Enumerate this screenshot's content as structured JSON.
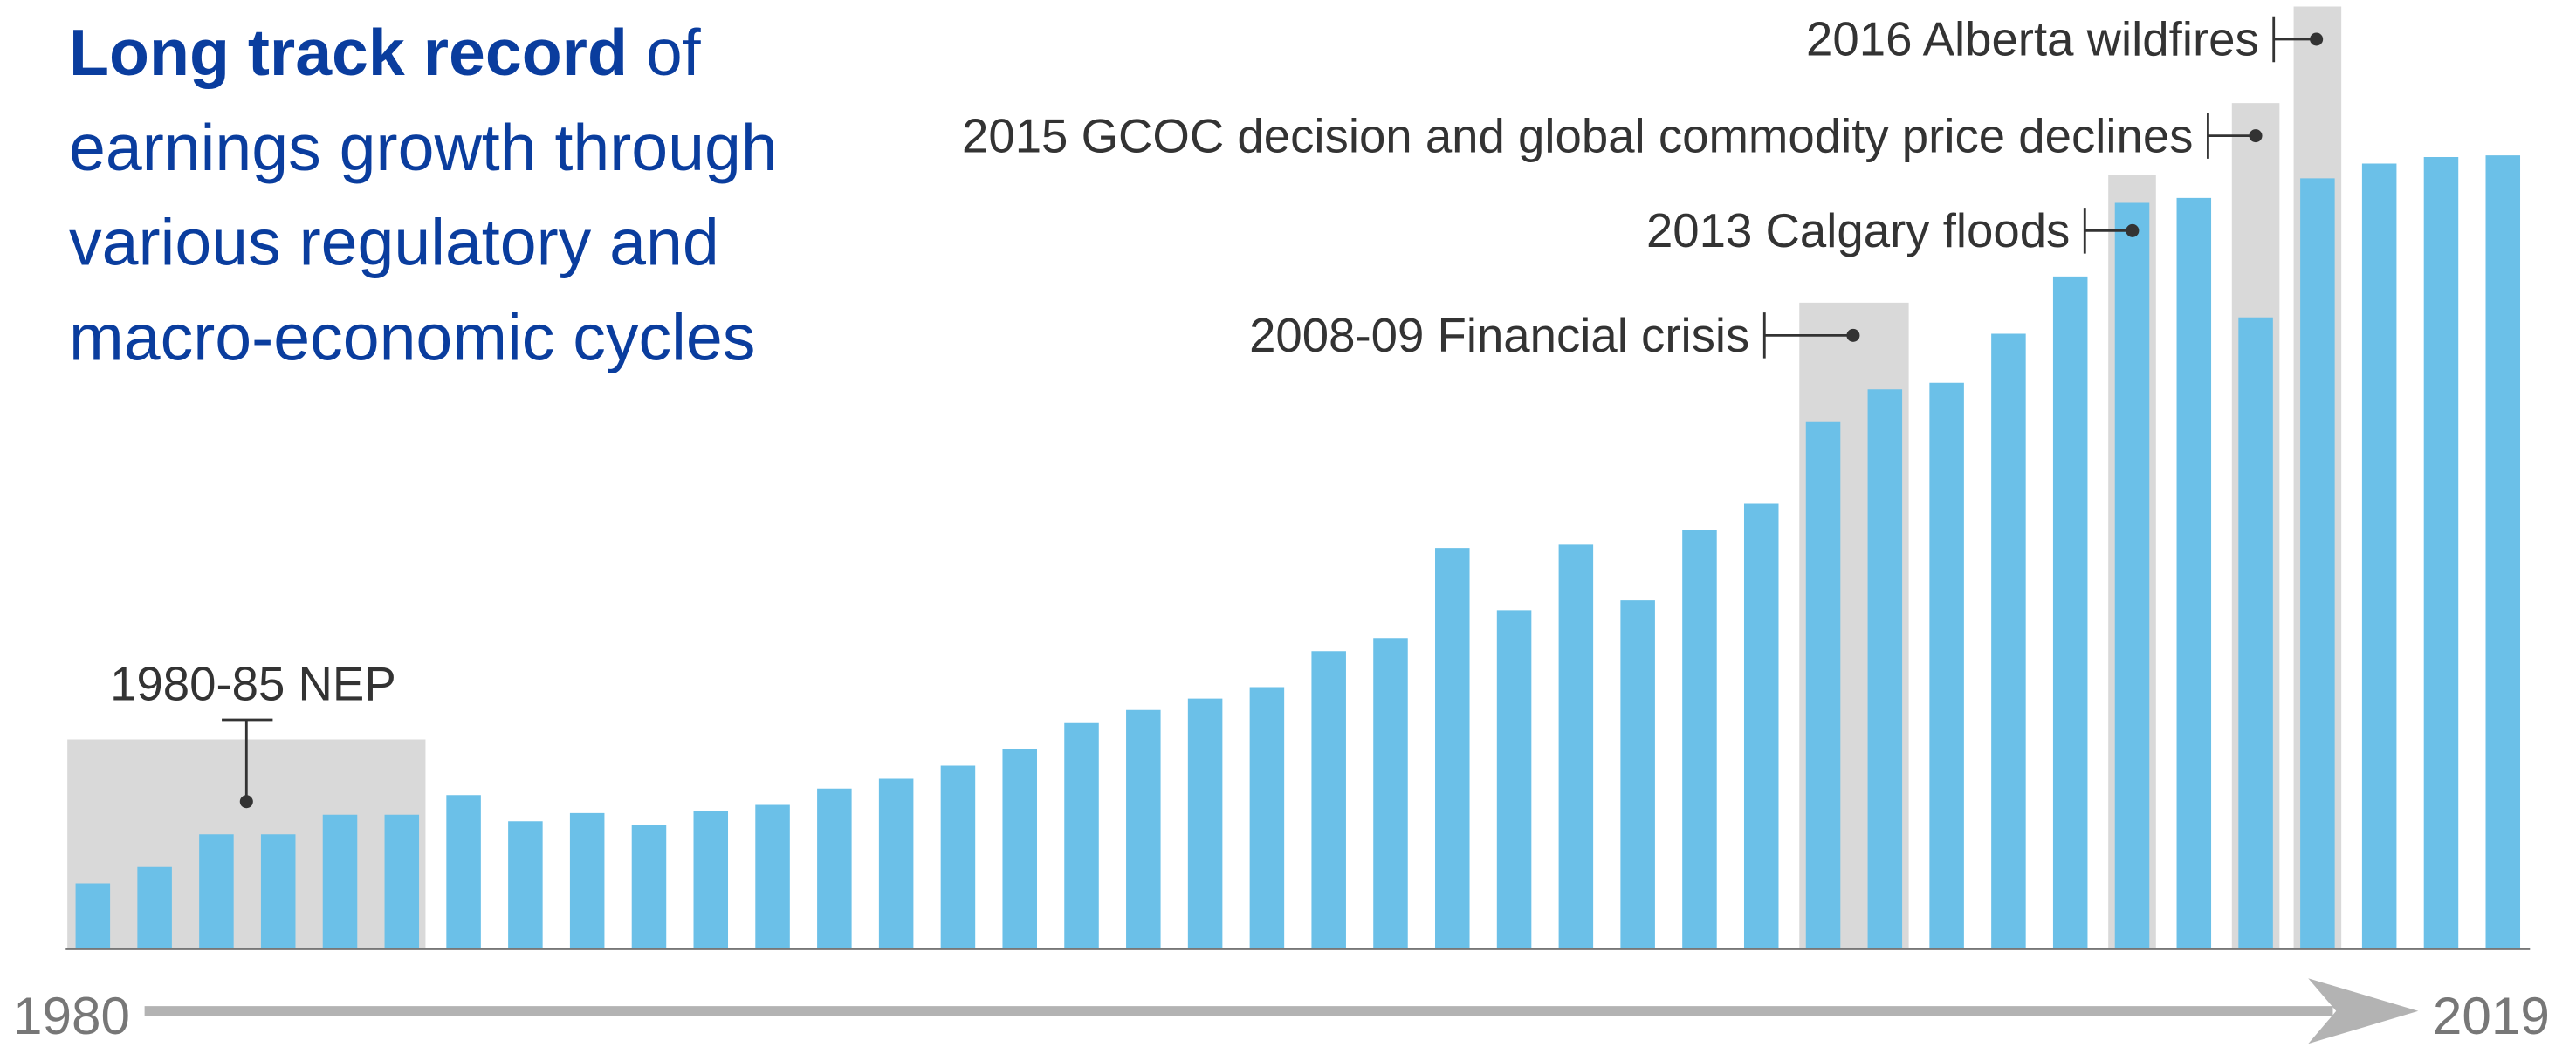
{
  "chart_data": {
    "type": "bar",
    "title": {
      "bold": "Long track record",
      "rest": "of",
      "lines": [
        "earnings growth through",
        "various regulatory and",
        "macro-economic cycles"
      ]
    },
    "categories": [
      "1980",
      null,
      null,
      null,
      null,
      null,
      null,
      null,
      null,
      null,
      null,
      null,
      null,
      null,
      null,
      null,
      null,
      null,
      null,
      null,
      null,
      null,
      null,
      null,
      null,
      null,
      null,
      null,
      null,
      null,
      null,
      null,
      null,
      null,
      null,
      null,
      null,
      null,
      null,
      "2019"
    ],
    "values": [
      40,
      50,
      70,
      70,
      82,
      82,
      94,
      78,
      83,
      76,
      84,
      88,
      98,
      104,
      112,
      122,
      138,
      146,
      153,
      160,
      182,
      190,
      245,
      207,
      247,
      213,
      256,
      272,
      322,
      342,
      346,
      376,
      411,
      456,
      459,
      386,
      471,
      480,
      484,
      485
    ],
    "color": "#6bc0e8",
    "ylim": [
      0,
      500
    ],
    "annotations": [
      "1980-85 NEP",
      "2008-09 Financial crisis",
      "2013 Calgary floods",
      "2015 GCOC decision and global commodity price declines",
      "2016 Alberta wildfires"
    ]
  }
}
